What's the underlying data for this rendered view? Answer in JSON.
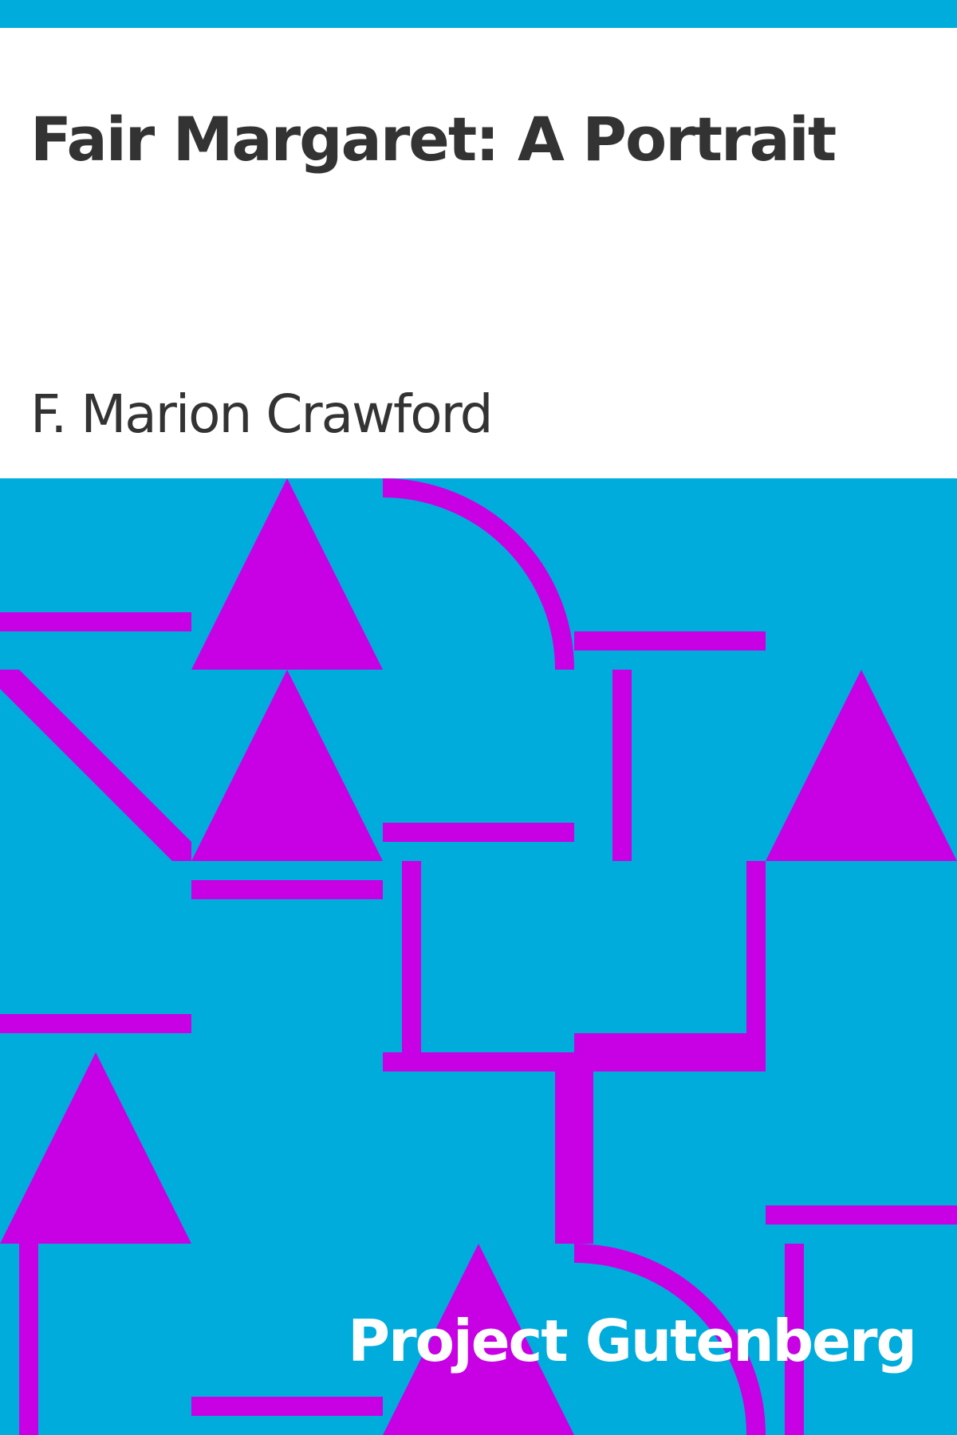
{
  "cover": {
    "title": "Fair Margaret: A Portrait",
    "author": "F. Marion Crawford",
    "publisher": "Project Gutenberg"
  },
  "colors": {
    "background": "#00acdc",
    "shapes": "#c800e4",
    "text": "#333333",
    "publisher_text": "#ffffff"
  }
}
